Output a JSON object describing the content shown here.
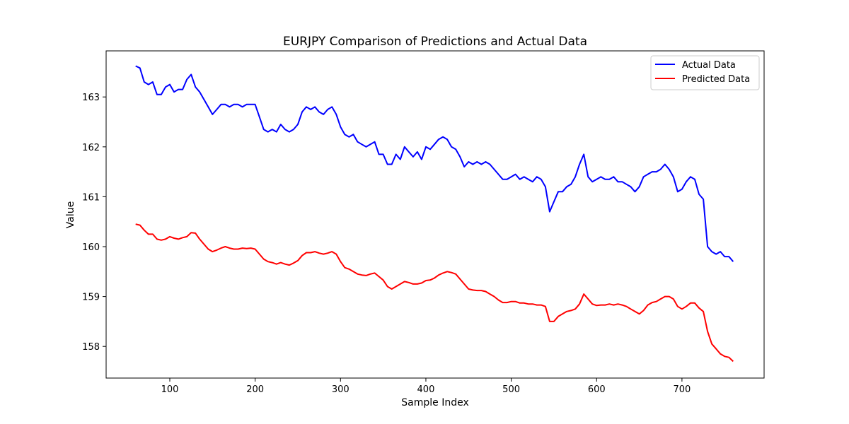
{
  "chart_data": {
    "type": "line",
    "title": "EURJPY Comparison of Predictions and Actual Data",
    "xlabel": "Sample Index",
    "ylabel": "Value",
    "xlim": [
      60,
      760
    ],
    "ylim": [
      157.7,
      163.8
    ],
    "xticks": [
      100,
      200,
      300,
      400,
      500,
      600,
      700
    ],
    "yticks": [
      158,
      159,
      160,
      161,
      162,
      163
    ],
    "legend_position": "top-right",
    "grid": false,
    "series": [
      {
        "name": "Actual Data",
        "color": "#0000ff",
        "points": [
          [
            60,
            163.62
          ],
          [
            65,
            163.58
          ],
          [
            70,
            163.3
          ],
          [
            75,
            163.25
          ],
          [
            80,
            163.3
          ],
          [
            85,
            163.05
          ],
          [
            90,
            163.05
          ],
          [
            95,
            163.2
          ],
          [
            100,
            163.25
          ],
          [
            105,
            163.1
          ],
          [
            110,
            163.15
          ],
          [
            115,
            163.15
          ],
          [
            120,
            163.35
          ],
          [
            125,
            163.45
          ],
          [
            130,
            163.2
          ],
          [
            135,
            163.1
          ],
          [
            140,
            162.95
          ],
          [
            145,
            162.8
          ],
          [
            150,
            162.65
          ],
          [
            155,
            162.75
          ],
          [
            160,
            162.85
          ],
          [
            165,
            162.85
          ],
          [
            170,
            162.8
          ],
          [
            175,
            162.85
          ],
          [
            180,
            162.85
          ],
          [
            185,
            162.8
          ],
          [
            190,
            162.85
          ],
          [
            195,
            162.85
          ],
          [
            200,
            162.85
          ],
          [
            205,
            162.6
          ],
          [
            210,
            162.35
          ],
          [
            215,
            162.3
          ],
          [
            220,
            162.35
          ],
          [
            225,
            162.3
          ],
          [
            230,
            162.45
          ],
          [
            235,
            162.35
          ],
          [
            240,
            162.3
          ],
          [
            245,
            162.35
          ],
          [
            250,
            162.45
          ],
          [
            255,
            162.7
          ],
          [
            260,
            162.8
          ],
          [
            265,
            162.75
          ],
          [
            270,
            162.8
          ],
          [
            275,
            162.7
          ],
          [
            280,
            162.65
          ],
          [
            285,
            162.75
          ],
          [
            290,
            162.8
          ],
          [
            295,
            162.65
          ],
          [
            300,
            162.4
          ],
          [
            305,
            162.25
          ],
          [
            310,
            162.2
          ],
          [
            315,
            162.25
          ],
          [
            320,
            162.1
          ],
          [
            325,
            162.05
          ],
          [
            330,
            162.0
          ],
          [
            335,
            162.05
          ],
          [
            340,
            162.1
          ],
          [
            345,
            161.85
          ],
          [
            350,
            161.85
          ],
          [
            355,
            161.65
          ],
          [
            360,
            161.65
          ],
          [
            365,
            161.85
          ],
          [
            370,
            161.75
          ],
          [
            375,
            162.0
          ],
          [
            380,
            161.9
          ],
          [
            385,
            161.8
          ],
          [
            390,
            161.9
          ],
          [
            395,
            161.75
          ],
          [
            400,
            162.0
          ],
          [
            405,
            161.95
          ],
          [
            410,
            162.05
          ],
          [
            415,
            162.15
          ],
          [
            420,
            162.2
          ],
          [
            425,
            162.15
          ],
          [
            430,
            162.0
          ],
          [
            435,
            161.95
          ],
          [
            440,
            161.8
          ],
          [
            445,
            161.6
          ],
          [
            450,
            161.7
          ],
          [
            455,
            161.65
          ],
          [
            460,
            161.7
          ],
          [
            465,
            161.65
          ],
          [
            470,
            161.7
          ],
          [
            475,
            161.65
          ],
          [
            480,
            161.55
          ],
          [
            485,
            161.45
          ],
          [
            490,
            161.35
          ],
          [
            495,
            161.35
          ],
          [
            500,
            161.4
          ],
          [
            505,
            161.45
          ],
          [
            510,
            161.35
          ],
          [
            515,
            161.4
          ],
          [
            520,
            161.35
          ],
          [
            525,
            161.3
          ],
          [
            530,
            161.4
          ],
          [
            535,
            161.35
          ],
          [
            540,
            161.2
          ],
          [
            545,
            160.7
          ],
          [
            550,
            160.9
          ],
          [
            555,
            161.1
          ],
          [
            560,
            161.1
          ],
          [
            565,
            161.2
          ],
          [
            570,
            161.25
          ],
          [
            575,
            161.4
          ],
          [
            580,
            161.65
          ],
          [
            585,
            161.85
          ],
          [
            590,
            161.4
          ],
          [
            595,
            161.3
          ],
          [
            600,
            161.35
          ],
          [
            605,
            161.4
          ],
          [
            610,
            161.35
          ],
          [
            615,
            161.35
          ],
          [
            620,
            161.4
          ],
          [
            625,
            161.3
          ],
          [
            630,
            161.3
          ],
          [
            635,
            161.25
          ],
          [
            640,
            161.2
          ],
          [
            645,
            161.1
          ],
          [
            650,
            161.2
          ],
          [
            655,
            161.4
          ],
          [
            660,
            161.45
          ],
          [
            665,
            161.5
          ],
          [
            670,
            161.5
          ],
          [
            675,
            161.55
          ],
          [
            680,
            161.65
          ],
          [
            685,
            161.55
          ],
          [
            690,
            161.4
          ],
          [
            695,
            161.1
          ],
          [
            700,
            161.15
          ],
          [
            705,
            161.3
          ],
          [
            710,
            161.4
          ],
          [
            715,
            161.35
          ],
          [
            720,
            161.05
          ],
          [
            725,
            160.95
          ],
          [
            730,
            160.0
          ],
          [
            735,
            159.9
          ],
          [
            740,
            159.85
          ],
          [
            745,
            159.9
          ],
          [
            750,
            159.8
          ],
          [
            755,
            159.8
          ],
          [
            760,
            159.7
          ]
        ]
      },
      {
        "name": "Predicted Data",
        "color": "#ff0000",
        "points": [
          [
            60,
            160.45
          ],
          [
            65,
            160.43
          ],
          [
            70,
            160.33
          ],
          [
            75,
            160.25
          ],
          [
            80,
            160.25
          ],
          [
            85,
            160.15
          ],
          [
            90,
            160.13
          ],
          [
            95,
            160.15
          ],
          [
            100,
            160.2
          ],
          [
            105,
            160.17
          ],
          [
            110,
            160.15
          ],
          [
            115,
            160.18
          ],
          [
            120,
            160.2
          ],
          [
            125,
            160.28
          ],
          [
            130,
            160.27
          ],
          [
            135,
            160.15
          ],
          [
            140,
            160.05
          ],
          [
            145,
            159.95
          ],
          [
            150,
            159.9
          ],
          [
            155,
            159.93
          ],
          [
            160,
            159.97
          ],
          [
            165,
            160.0
          ],
          [
            170,
            159.97
          ],
          [
            175,
            159.95
          ],
          [
            180,
            159.95
          ],
          [
            185,
            159.97
          ],
          [
            190,
            159.96
          ],
          [
            195,
            159.97
          ],
          [
            200,
            159.95
          ],
          [
            205,
            159.85
          ],
          [
            210,
            159.75
          ],
          [
            215,
            159.7
          ],
          [
            220,
            159.68
          ],
          [
            225,
            159.65
          ],
          [
            230,
            159.68
          ],
          [
            235,
            159.65
          ],
          [
            240,
            159.63
          ],
          [
            245,
            159.67
          ],
          [
            250,
            159.72
          ],
          [
            255,
            159.82
          ],
          [
            260,
            159.88
          ],
          [
            265,
            159.88
          ],
          [
            270,
            159.9
          ],
          [
            275,
            159.87
          ],
          [
            280,
            159.85
          ],
          [
            285,
            159.87
          ],
          [
            290,
            159.9
          ],
          [
            295,
            159.85
          ],
          [
            300,
            159.7
          ],
          [
            305,
            159.58
          ],
          [
            310,
            159.55
          ],
          [
            315,
            159.5
          ],
          [
            320,
            159.45
          ],
          [
            325,
            159.43
          ],
          [
            330,
            159.42
          ],
          [
            335,
            159.45
          ],
          [
            340,
            159.47
          ],
          [
            345,
            159.4
          ],
          [
            350,
            159.33
          ],
          [
            355,
            159.2
          ],
          [
            360,
            159.15
          ],
          [
            365,
            159.2
          ],
          [
            370,
            159.25
          ],
          [
            375,
            159.3
          ],
          [
            380,
            159.28
          ],
          [
            385,
            159.25
          ],
          [
            390,
            159.25
          ],
          [
            395,
            159.27
          ],
          [
            400,
            159.32
          ],
          [
            405,
            159.33
          ],
          [
            410,
            159.37
          ],
          [
            415,
            159.43
          ],
          [
            420,
            159.47
          ],
          [
            425,
            159.5
          ],
          [
            430,
            159.48
          ],
          [
            435,
            159.45
          ],
          [
            440,
            159.35
          ],
          [
            445,
            159.25
          ],
          [
            450,
            159.15
          ],
          [
            455,
            159.13
          ],
          [
            460,
            159.12
          ],
          [
            465,
            159.12
          ],
          [
            470,
            159.1
          ],
          [
            475,
            159.05
          ],
          [
            480,
            159.0
          ],
          [
            485,
            158.93
          ],
          [
            490,
            158.88
          ],
          [
            495,
            158.88
          ],
          [
            500,
            158.9
          ],
          [
            505,
            158.9
          ],
          [
            510,
            158.87
          ],
          [
            515,
            158.87
          ],
          [
            520,
            158.85
          ],
          [
            525,
            158.85
          ],
          [
            530,
            158.83
          ],
          [
            535,
            158.83
          ],
          [
            540,
            158.8
          ],
          [
            545,
            158.5
          ],
          [
            550,
            158.5
          ],
          [
            555,
            158.6
          ],
          [
            560,
            158.65
          ],
          [
            565,
            158.7
          ],
          [
            570,
            158.72
          ],
          [
            575,
            158.75
          ],
          [
            580,
            158.85
          ],
          [
            585,
            159.05
          ],
          [
            590,
            158.95
          ],
          [
            595,
            158.85
          ],
          [
            600,
            158.82
          ],
          [
            605,
            158.83
          ],
          [
            610,
            158.83
          ],
          [
            615,
            158.85
          ],
          [
            620,
            158.83
          ],
          [
            625,
            158.85
          ],
          [
            630,
            158.83
          ],
          [
            635,
            158.8
          ],
          [
            640,
            158.75
          ],
          [
            645,
            158.7
          ],
          [
            650,
            158.65
          ],
          [
            655,
            158.72
          ],
          [
            660,
            158.83
          ],
          [
            665,
            158.88
          ],
          [
            670,
            158.9
          ],
          [
            675,
            158.95
          ],
          [
            680,
            159.0
          ],
          [
            685,
            159.0
          ],
          [
            690,
            158.95
          ],
          [
            695,
            158.8
          ],
          [
            700,
            158.75
          ],
          [
            705,
            158.8
          ],
          [
            710,
            158.87
          ],
          [
            715,
            158.87
          ],
          [
            720,
            158.77
          ],
          [
            725,
            158.7
          ],
          [
            730,
            158.3
          ],
          [
            735,
            158.05
          ],
          [
            740,
            157.95
          ],
          [
            745,
            157.85
          ],
          [
            750,
            157.8
          ],
          [
            755,
            157.78
          ],
          [
            760,
            157.7
          ]
        ]
      }
    ]
  }
}
